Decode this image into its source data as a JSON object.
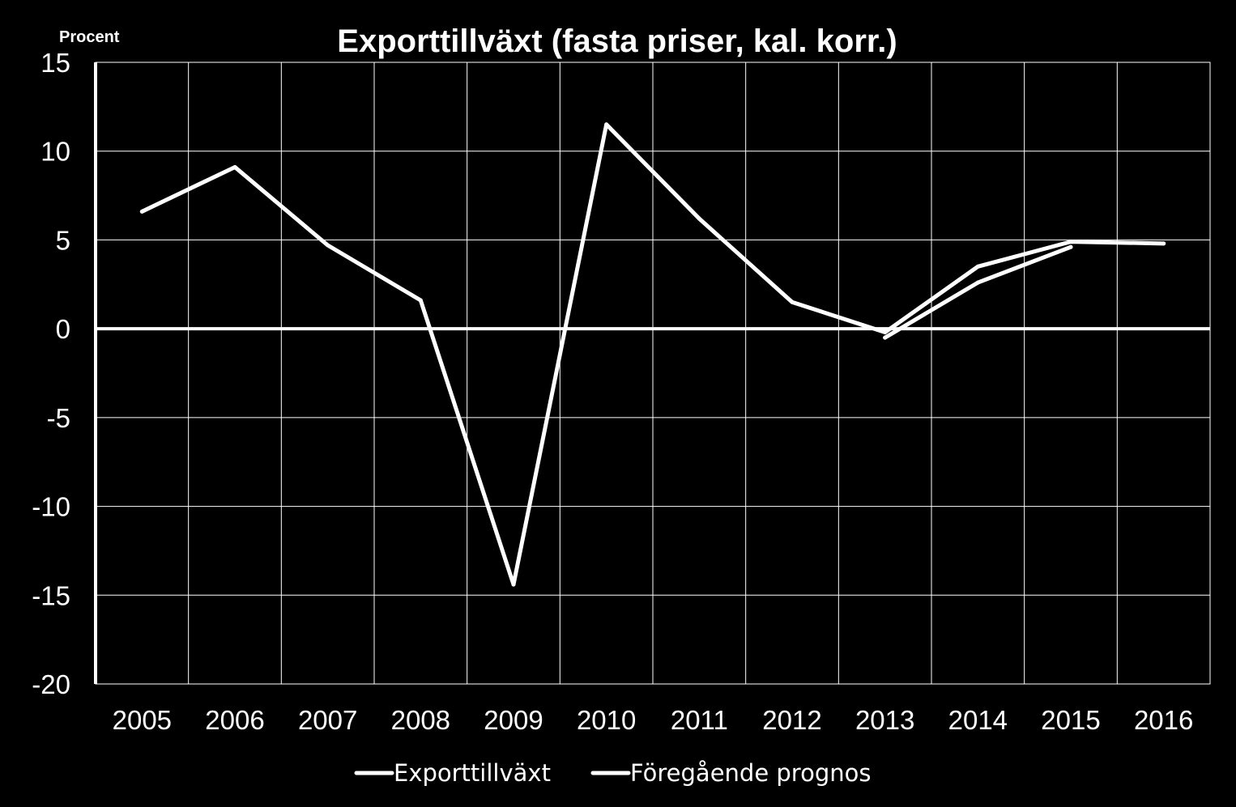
{
  "chart_data": {
    "type": "line",
    "title": "Exporttillväxt (fasta priser, kal. korr.)",
    "ylabel": "Procent",
    "xlabel": "",
    "categories": [
      "2005",
      "2006",
      "2007",
      "2008",
      "2009",
      "2010",
      "2011",
      "2012",
      "2013",
      "2014",
      "2015",
      "2016"
    ],
    "ylim": [
      -20,
      15
    ],
    "yticks": [
      15,
      10,
      5,
      0,
      -5,
      -10,
      -15,
      -20
    ],
    "grid": true,
    "legend_position": "bottom",
    "colors": {
      "background": "#000000",
      "foreground": "#ffffff"
    },
    "series": [
      {
        "name": "Exporttillväxt",
        "x": [
          "2005",
          "2006",
          "2007",
          "2008",
          "2009",
          "2010",
          "2011",
          "2012",
          "2013",
          "2014",
          "2015",
          "2016"
        ],
        "values": [
          6.6,
          9.1,
          4.7,
          1.6,
          -14.4,
          11.5,
          6.2,
          1.5,
          -0.2,
          3.5,
          4.9,
          4.8
        ]
      },
      {
        "name": "Föregående prognos",
        "x": [
          "2013",
          "2014",
          "2015"
        ],
        "values": [
          -0.5,
          2.6,
          4.6
        ]
      }
    ]
  }
}
